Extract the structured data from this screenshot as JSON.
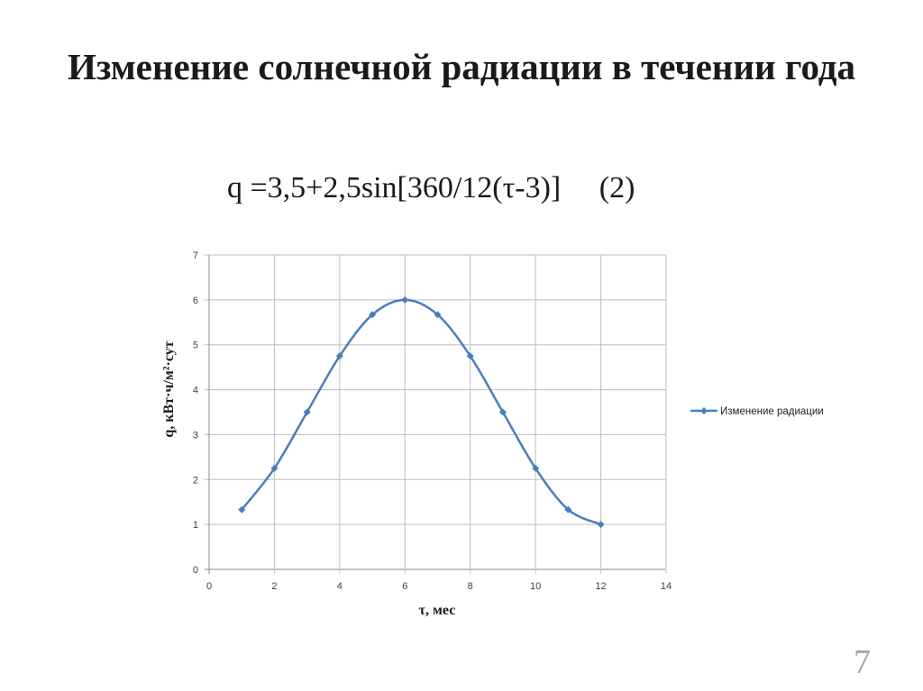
{
  "slide": {
    "title": "Изменение солнечной радиации в течении года",
    "formula": "q =3,5+2,5sin[360/12(τ-3)]     (2)",
    "page_number": "7"
  },
  "chart_data": {
    "type": "line",
    "smooth": true,
    "markers": "diamond",
    "title": "",
    "xlabel": "τ, мес",
    "ylabel": "q, кВт·ч/м²·сут",
    "xlim": [
      0,
      14
    ],
    "ylim": [
      0,
      7
    ],
    "xticks": [
      0,
      2,
      4,
      6,
      8,
      10,
      12,
      14
    ],
    "yticks": [
      0,
      1,
      2,
      3,
      4,
      5,
      6,
      7
    ],
    "grid": true,
    "legend_position": "right",
    "series": [
      {
        "name": "Изменение радиации",
        "color": "#4a7ebb",
        "x": [
          1,
          2,
          3,
          4,
          5,
          6,
          7,
          8,
          9,
          10,
          11,
          12
        ],
        "y": [
          1.33,
          2.25,
          3.5,
          4.75,
          5.67,
          6.0,
          5.67,
          4.75,
          3.5,
          2.25,
          1.33,
          1.0
        ]
      }
    ]
  }
}
